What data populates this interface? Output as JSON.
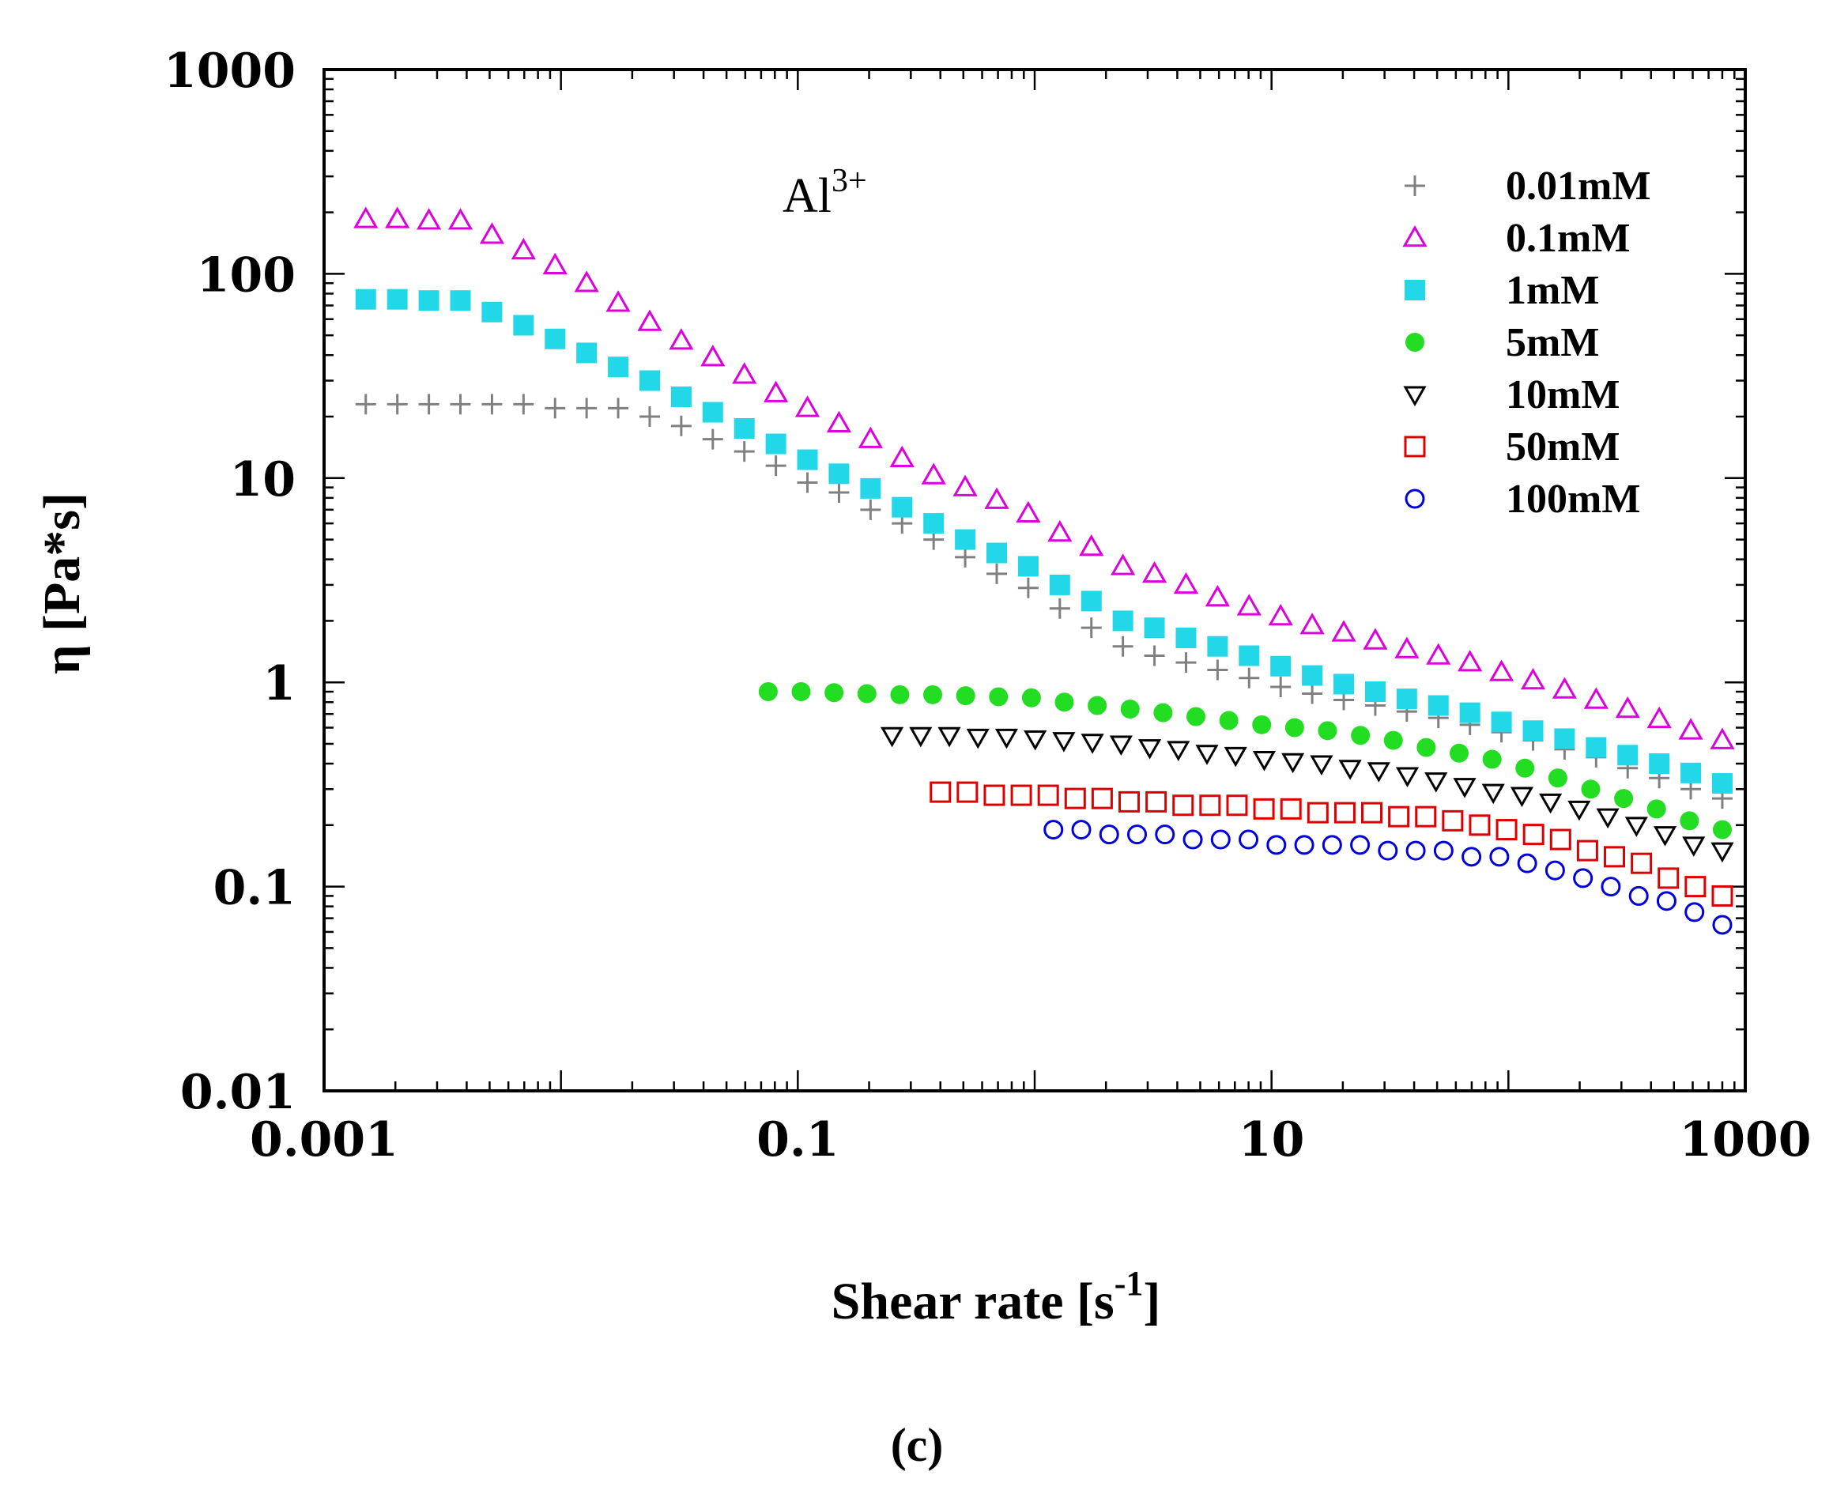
{
  "chart_data": {
    "type": "scatter",
    "x_scale": "log",
    "y_scale": "log",
    "xlim": [
      0.001,
      1000
    ],
    "ylim": [
      0.01,
      1000
    ],
    "xlabel": "Shear rate [s",
    "xlabel_sup": "-1",
    "xlabel_close": "]",
    "ylabel": "η [Pa*s]",
    "x_ticks": [
      {
        "value": 0.001,
        "label": "0.001"
      },
      {
        "value": 0.1,
        "label": "0.1"
      },
      {
        "value": 10,
        "label": "10"
      },
      {
        "value": 1000,
        "label": "1000"
      }
    ],
    "y_ticks": [
      {
        "value": 0.01,
        "label": "0.01"
      },
      {
        "value": 0.1,
        "label": "0.1"
      },
      {
        "value": 1,
        "label": "1"
      },
      {
        "value": 10,
        "label": "10"
      },
      {
        "value": 100,
        "label": "100"
      },
      {
        "value": 1000,
        "label": "1000"
      }
    ],
    "annotation": {
      "text": "Al",
      "sup": "3+"
    },
    "panel_label": "(c)",
    "legend_position": "top-right",
    "series": [
      {
        "name": "0.01mM",
        "marker": "plus",
        "color": "#808080",
        "x_range": [
          0.0015,
          800
        ],
        "n": 44,
        "y": [
          23,
          23,
          23,
          23,
          23,
          23,
          22,
          22,
          22,
          20,
          18,
          15.5,
          13.5,
          11.5,
          9.5,
          8.5,
          7,
          6,
          5,
          4.1,
          3.4,
          2.9,
          2.3,
          1.85,
          1.5,
          1.35,
          1.25,
          1.15,
          1.05,
          0.95,
          0.88,
          0.82,
          0.77,
          0.72,
          0.67,
          0.62,
          0.57,
          0.52,
          0.47,
          0.43,
          0.38,
          0.34,
          0.3,
          0.27
        ]
      },
      {
        "name": "0.1mM",
        "marker": "triangle-up",
        "color": "#dd00dd",
        "x_range": [
          0.0015,
          800
        ],
        "n": 44,
        "y": [
          185,
          185,
          182,
          182,
          155,
          130,
          110,
          90,
          72,
          58,
          47,
          39,
          32,
          26,
          22,
          18.5,
          15.5,
          12.5,
          10.3,
          9,
          7.8,
          6.7,
          5.4,
          4.6,
          3.7,
          3.4,
          3,
          2.6,
          2.35,
          2.1,
          1.9,
          1.75,
          1.6,
          1.45,
          1.35,
          1.25,
          1.12,
          1.02,
          0.92,
          0.82,
          0.74,
          0.66,
          0.58,
          0.52
        ]
      },
      {
        "name": "1mM",
        "marker": "square-filled",
        "color": "#22d8e8",
        "x_range": [
          0.0015,
          800
        ],
        "n": 44,
        "y": [
          75,
          75,
          74,
          74,
          65,
          56,
          48,
          41,
          35,
          30,
          25,
          21,
          17.5,
          14.7,
          12.3,
          10.5,
          8.9,
          7.2,
          6,
          5,
          4.3,
          3.7,
          3,
          2.5,
          2,
          1.85,
          1.65,
          1.5,
          1.35,
          1.2,
          1.08,
          0.98,
          0.9,
          0.83,
          0.77,
          0.71,
          0.64,
          0.58,
          0.53,
          0.48,
          0.44,
          0.4,
          0.36,
          0.32
        ]
      },
      {
        "name": "5mM",
        "marker": "circle-filled",
        "color": "#22dd22",
        "x_range": [
          0.075,
          800
        ],
        "n": 30,
        "y": [
          0.9,
          0.9,
          0.89,
          0.88,
          0.87,
          0.87,
          0.86,
          0.85,
          0.84,
          0.8,
          0.77,
          0.74,
          0.71,
          0.68,
          0.65,
          0.62,
          0.6,
          0.58,
          0.55,
          0.52,
          0.48,
          0.45,
          0.42,
          0.38,
          0.34,
          0.3,
          0.27,
          0.24,
          0.21,
          0.19
        ]
      },
      {
        "name": "10mM",
        "marker": "triangle-down",
        "color": "#000000",
        "x_range": [
          0.25,
          800
        ],
        "n": 30,
        "y": [
          0.55,
          0.55,
          0.55,
          0.54,
          0.54,
          0.53,
          0.52,
          0.51,
          0.5,
          0.48,
          0.47,
          0.45,
          0.44,
          0.42,
          0.41,
          0.4,
          0.38,
          0.37,
          0.35,
          0.33,
          0.31,
          0.29,
          0.28,
          0.26,
          0.24,
          0.22,
          0.2,
          0.18,
          0.16,
          0.15
        ]
      },
      {
        "name": "50mM",
        "marker": "square-open",
        "color": "#dd0000",
        "x_range": [
          0.4,
          800
        ],
        "n": 30,
        "y": [
          0.29,
          0.29,
          0.28,
          0.28,
          0.28,
          0.27,
          0.27,
          0.26,
          0.26,
          0.25,
          0.25,
          0.25,
          0.24,
          0.24,
          0.23,
          0.23,
          0.23,
          0.22,
          0.22,
          0.21,
          0.2,
          0.19,
          0.18,
          0.17,
          0.15,
          0.14,
          0.13,
          0.11,
          0.1,
          0.09
        ]
      },
      {
        "name": "100mM",
        "marker": "circle-open",
        "color": "#0000dd",
        "x_range": [
          1.2,
          800
        ],
        "n": 25,
        "y": [
          0.19,
          0.19,
          0.18,
          0.18,
          0.18,
          0.17,
          0.17,
          0.17,
          0.16,
          0.16,
          0.16,
          0.16,
          0.15,
          0.15,
          0.15,
          0.14,
          0.14,
          0.13,
          0.12,
          0.11,
          0.1,
          0.09,
          0.085,
          0.075,
          0.065
        ]
      }
    ]
  }
}
